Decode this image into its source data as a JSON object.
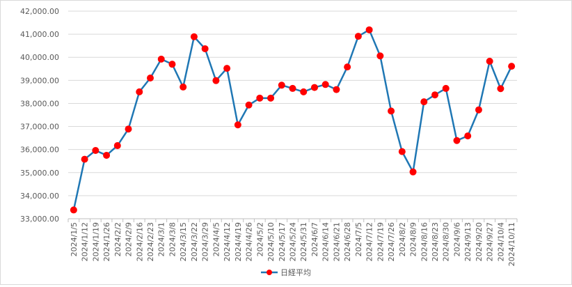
{
  "chart_data": {
    "type": "line",
    "title": "",
    "xlabel": "",
    "ylabel": "",
    "ylim": [
      33000,
      42000
    ],
    "yticks": [
      33000,
      34000,
      35000,
      36000,
      37000,
      38000,
      39000,
      40000,
      41000,
      42000
    ],
    "ytick_labels": [
      "33,000.00",
      "34,000.00",
      "35,000.00",
      "36,000.00",
      "37,000.00",
      "38,000.00",
      "39,000.00",
      "40,000.00",
      "41,000.00",
      "42,000.00"
    ],
    "grid": "horizontal",
    "legend_position": "bottom",
    "line_color": "#1f77b4",
    "marker_color": "#ff0000",
    "categories": [
      "2024/1/5",
      "2024/1/12",
      "2024/1/19",
      "2024/1/26",
      "2024/2/2",
      "2024/2/9",
      "2024/2/16",
      "2024/2/23",
      "2024/3/1",
      "2024/3/8",
      "2024/3/15",
      "2024/3/22",
      "2024/3/29",
      "2024/4/5",
      "2024/4/12",
      "2024/4/19",
      "2024/4/26",
      "2024/5/2",
      "2024/5/10",
      "2024/5/17",
      "2024/5/24",
      "2024/5/31",
      "2024/6/7",
      "2024/6/14",
      "2024/6/21",
      "2024/6/28",
      "2024/7/5",
      "2024/7/12",
      "2024/7/19",
      "2024/7/26",
      "2024/8/2",
      "2024/8/9",
      "2024/8/16",
      "2024/8/23",
      "2024/8/30",
      "2024/9/6",
      "2024/9/13",
      "2024/9/20",
      "2024/9/27",
      "2024/10/4",
      "2024/10/11"
    ],
    "series": [
      {
        "name": "日経平均",
        "values": [
          33380,
          35580,
          35960,
          35750,
          36170,
          36890,
          38500,
          39100,
          39920,
          39700,
          38710,
          40890,
          40370,
          38990,
          39520,
          37070,
          37930,
          38230,
          38230,
          38790,
          38650,
          38500,
          38690,
          38820,
          38600,
          39580,
          40910,
          41190,
          40060,
          37670,
          35910,
          35030,
          38070,
          38370,
          38650,
          36390,
          36590,
          37720,
          39830,
          38640,
          39610
        ]
      }
    ]
  }
}
